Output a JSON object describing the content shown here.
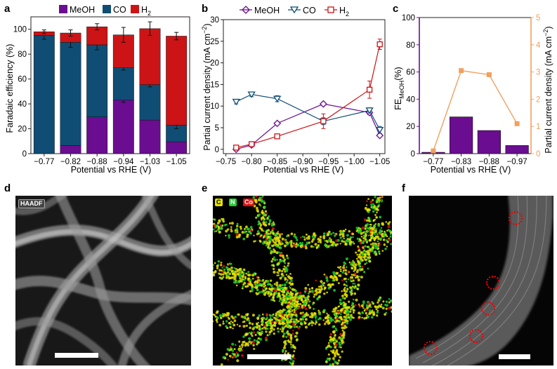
{
  "panels": {
    "a": {
      "letter": "a"
    },
    "b": {
      "letter": "b"
    },
    "c": {
      "letter": "c"
    },
    "d": {
      "letter": "d",
      "tag": "HAADF"
    },
    "e": {
      "letter": "e",
      "tags": [
        "C",
        "N",
        "Co"
      ]
    },
    "f": {
      "letter": "f"
    }
  },
  "colors": {
    "meoh": "#6a0d91",
    "co": "#0f4d74",
    "h2": "#cc1416",
    "fe_bar": "#6a0d91",
    "current_line": "#f0a060",
    "right_axis": "#f0a060",
    "eds_c": "#e5e200",
    "eds_n": "#1fd030",
    "eds_co": "#e01010"
  },
  "chart_data": [
    {
      "id": "a",
      "type": "bar",
      "stacked": true,
      "categories": [
        "−0.77",
        "−0.82",
        "−0.88",
        "−0.94",
        "−1.03",
        "−1.05"
      ],
      "series": [
        {
          "name": "MeOH",
          "values": [
            0,
            6.5,
            29.5,
            43,
            27,
            9.5
          ],
          "errors": [
            0,
            0,
            0,
            1.8,
            0,
            0
          ]
        },
        {
          "name": "CO",
          "values": [
            95,
            83,
            58,
            26,
            28.5,
            13.5
          ],
          "errors": [
            3,
            4,
            4,
            1.8,
            1.8,
            3
          ]
        },
        {
          "name": "H2",
          "values": [
            3,
            7.5,
            14.5,
            26.5,
            45,
            71.5
          ],
          "errors": [
            1.5,
            2.5,
            2.5,
            6,
            5.5,
            3
          ]
        }
      ],
      "legend_labels": [
        "MeOH",
        "CO",
        "H"
      ],
      "legend_h2_subscript": "2",
      "xlabel": "Potential vs RHE (V)",
      "ylabel": "Faradaic efficiency (%)",
      "ylim": [
        0,
        110
      ],
      "yticks": [
        "0",
        "20",
        "40",
        "60",
        "80",
        "100"
      ],
      "legend_position": "top"
    },
    {
      "id": "b",
      "type": "line",
      "x": [
        -0.77,
        -0.8,
        -0.85,
        -0.94,
        -1.03,
        -1.05
      ],
      "xticks": [
        "−0.75",
        "−0.80",
        "−0.85",
        "−0.90",
        "−0.95",
        "−1.00",
        "−1.05"
      ],
      "series": [
        {
          "name": "MeOH",
          "marker": "diamond",
          "values": [
            0,
            1,
            6,
            10.5,
            8.5,
            3.2
          ],
          "errors": [
            0.3,
            0.3,
            0.3,
            0.4,
            0.5,
            0.3
          ]
        },
        {
          "name": "CO",
          "marker": "triangle-down",
          "values": [
            11,
            12.7,
            11.7,
            6.5,
            9,
            4.5
          ],
          "errors": [
            0.5,
            0.5,
            0.7,
            0.8,
            0.6,
            0.8
          ]
        },
        {
          "name": "H2",
          "marker": "square",
          "values": [
            0.4,
            1.2,
            3,
            6.5,
            13.8,
            24.3
          ],
          "errors": [
            0.3,
            0.5,
            0.5,
            1.7,
            2,
            1.2
          ]
        }
      ],
      "legend_labels": [
        "MeOH",
        "CO",
        "H"
      ],
      "legend_h2_subscript": "2",
      "xlabel": "Potential vs RHE (V)",
      "ylabel": "Partial current density (mA cm",
      "ylabel_sup": "−2",
      "ylabel_end": ")",
      "ylim": [
        -1,
        30
      ],
      "yticks": [
        "0",
        "5",
        "10",
        "15",
        "20",
        "25",
        "30"
      ],
      "xlim": [
        -0.745,
        -1.06
      ],
      "legend_position": "top"
    },
    {
      "id": "c",
      "type": "bar",
      "categories": [
        "−0.77",
        "−0.83",
        "−0.88",
        "−0.97"
      ],
      "values": [
        1,
        27,
        17,
        6
      ],
      "line_values": [
        0.1,
        3.05,
        2.9,
        1.1
      ],
      "xlabel": "Potential vs RHE (V)",
      "ylabel": "FE",
      "ylabel_sub": "MeOH",
      "ylabel_end": "(%)",
      "ylim": [
        0,
        100
      ],
      "yticks": [
        "0",
        "20",
        "40",
        "60",
        "80",
        "100"
      ],
      "y2label": "Partial current density (mA cm",
      "y2label_sup": "−2",
      "y2label_end": ")",
      "y2lim": [
        0,
        5
      ],
      "y2ticks": [
        "0",
        "1",
        "2",
        "3",
        "4",
        "5"
      ]
    }
  ]
}
